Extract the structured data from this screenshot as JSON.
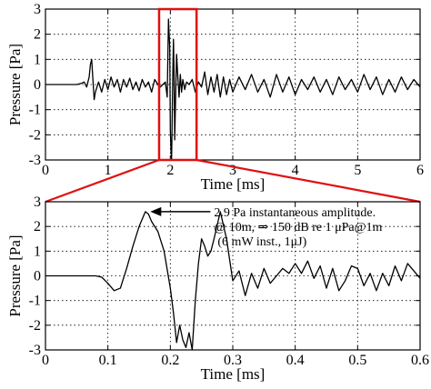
{
  "chart_data": [
    {
      "type": "line",
      "xlabel": "Time [ms]",
      "ylabel": "Pressure [Pa]",
      "xlim": [
        0,
        6
      ],
      "ylim": [
        -3,
        3
      ],
      "xticks": [
        0,
        1,
        2,
        3,
        4,
        5,
        6
      ],
      "yticks": [
        -3,
        -2,
        -1,
        0,
        1,
        2,
        3
      ],
      "grid": true,
      "highlight": {
        "x_range": [
          1.82,
          2.42
        ],
        "y_range": [
          -3,
          3
        ],
        "color": "#e01010"
      },
      "series": [
        {
          "values_description": "",
          "x": [
            0.0,
            0.1,
            0.2,
            0.3,
            0.4,
            0.5,
            0.58,
            0.62,
            0.66,
            0.7,
            0.72,
            0.74,
            0.76,
            0.78,
            0.8,
            0.85,
            0.9,
            0.95,
            1.0,
            1.05,
            1.1,
            1.15,
            1.2,
            1.25,
            1.3,
            1.35,
            1.4,
            1.45,
            1.5,
            1.55,
            1.6,
            1.65,
            1.7,
            1.75,
            1.8,
            1.84,
            1.88,
            1.92,
            1.95,
            1.97,
            1.99,
            2.0,
            2.01,
            2.02,
            2.04,
            2.05,
            2.06,
            2.07,
            2.08,
            2.1,
            2.12,
            2.14,
            2.16,
            2.18,
            2.2,
            2.23,
            2.26,
            2.3,
            2.35,
            2.4,
            2.45,
            2.5,
            2.55,
            2.6,
            2.65,
            2.7,
            2.75,
            2.8,
            2.85,
            2.9,
            2.95,
            3.0,
            3.1,
            3.2,
            3.3,
            3.4,
            3.5,
            3.6,
            3.7,
            3.8,
            3.9,
            4.0,
            4.1,
            4.2,
            4.3,
            4.4,
            4.5,
            4.6,
            4.7,
            4.8,
            4.9,
            5.0,
            5.1,
            5.2,
            5.3,
            5.4,
            5.5,
            5.6,
            5.7,
            5.8,
            5.9,
            6.0
          ],
          "y": [
            0.0,
            0.0,
            0.0,
            0.0,
            0.0,
            0.0,
            0.05,
            0.1,
            -0.1,
            0.3,
            0.8,
            1.0,
            0.2,
            -0.6,
            -0.3,
            0.1,
            -0.3,
            0.2,
            -0.2,
            0.3,
            -0.1,
            0.2,
            -0.3,
            0.2,
            -0.1,
            0.25,
            -0.2,
            0.1,
            -0.25,
            0.2,
            -0.1,
            0.1,
            -0.3,
            0.2,
            0.0,
            -0.1,
            0.0,
            0.1,
            -0.5,
            2.6,
            1.5,
            -1.8,
            -2.6,
            -3.0,
            0.5,
            1.8,
            0.4,
            -2.2,
            -1.0,
            1.2,
            0.3,
            -0.5,
            0.4,
            -0.3,
            0.2,
            -0.2,
            0.1,
            0.0,
            0.2,
            -0.3,
            0.1,
            -0.1,
            0.5,
            -0.4,
            0.3,
            -0.3,
            0.4,
            -0.5,
            0.3,
            -0.4,
            0.2,
            -0.3,
            0.3,
            -0.2,
            0.4,
            -0.3,
            0.2,
            -0.5,
            0.4,
            -0.3,
            0.3,
            -0.4,
            0.2,
            -0.2,
            0.3,
            -0.3,
            0.2,
            -0.4,
            0.3,
            -0.2,
            0.2,
            -0.3,
            0.4,
            -0.2,
            0.3,
            -0.4,
            0.2,
            -0.3,
            0.3,
            -0.2,
            0.2,
            -0.1
          ]
        }
      ]
    },
    {
      "type": "line",
      "xlabel": "Time [ms]",
      "ylabel": "Pressure [Pa]",
      "xlim": [
        0,
        0.6
      ],
      "ylim": [
        -3,
        3
      ],
      "xticks": [
        0,
        0.1,
        0.2,
        0.3,
        0.4,
        0.5,
        0.6
      ],
      "yticks": [
        -3,
        -2,
        -1,
        0,
        1,
        2,
        3
      ],
      "grid": true,
      "annotations": [
        {
          "lines": [
            "2.9 Pa instantaneous amplitude.",
            "@ 10m, ⇒ 150 dB re 1 μPa@1m",
            "(6 mW inst., 1μJ)"
          ],
          "arrow_to": [
            0.165,
            2.6
          ]
        }
      ],
      "series": [
        {
          "x": [
            0.0,
            0.02,
            0.04,
            0.06,
            0.08,
            0.09,
            0.1,
            0.11,
            0.12,
            0.13,
            0.14,
            0.15,
            0.16,
            0.165,
            0.17,
            0.18,
            0.19,
            0.2,
            0.205,
            0.21,
            0.215,
            0.22,
            0.225,
            0.23,
            0.235,
            0.24,
            0.245,
            0.25,
            0.255,
            0.26,
            0.265,
            0.27,
            0.28,
            0.29,
            0.3,
            0.31,
            0.32,
            0.33,
            0.34,
            0.35,
            0.36,
            0.37,
            0.38,
            0.39,
            0.4,
            0.41,
            0.42,
            0.43,
            0.44,
            0.45,
            0.46,
            0.47,
            0.48,
            0.49,
            0.5,
            0.51,
            0.52,
            0.53,
            0.54,
            0.55,
            0.56,
            0.57,
            0.58,
            0.59,
            0.6
          ],
          "y": [
            0.0,
            0.0,
            0.0,
            0.0,
            0.0,
            -0.05,
            -0.3,
            -0.6,
            -0.5,
            0.3,
            1.2,
            2.0,
            2.6,
            2.5,
            2.2,
            1.8,
            1.0,
            -0.5,
            -1.5,
            -2.7,
            -2.0,
            -2.6,
            -2.9,
            -2.3,
            -3.0,
            -1.0,
            0.5,
            1.5,
            1.2,
            0.8,
            1.0,
            1.5,
            2.6,
            1.5,
            -0.2,
            0.2,
            -0.8,
            0.1,
            -0.5,
            0.3,
            -0.3,
            0.0,
            0.3,
            0.1,
            0.5,
            0.1,
            0.6,
            -0.1,
            0.4,
            -0.5,
            0.3,
            -0.6,
            -0.2,
            0.4,
            0.3,
            -0.4,
            0.1,
            -0.6,
            0.1,
            -0.4,
            0.4,
            -0.2,
            0.5,
            0.2,
            -0.1
          ]
        }
      ]
    }
  ]
}
